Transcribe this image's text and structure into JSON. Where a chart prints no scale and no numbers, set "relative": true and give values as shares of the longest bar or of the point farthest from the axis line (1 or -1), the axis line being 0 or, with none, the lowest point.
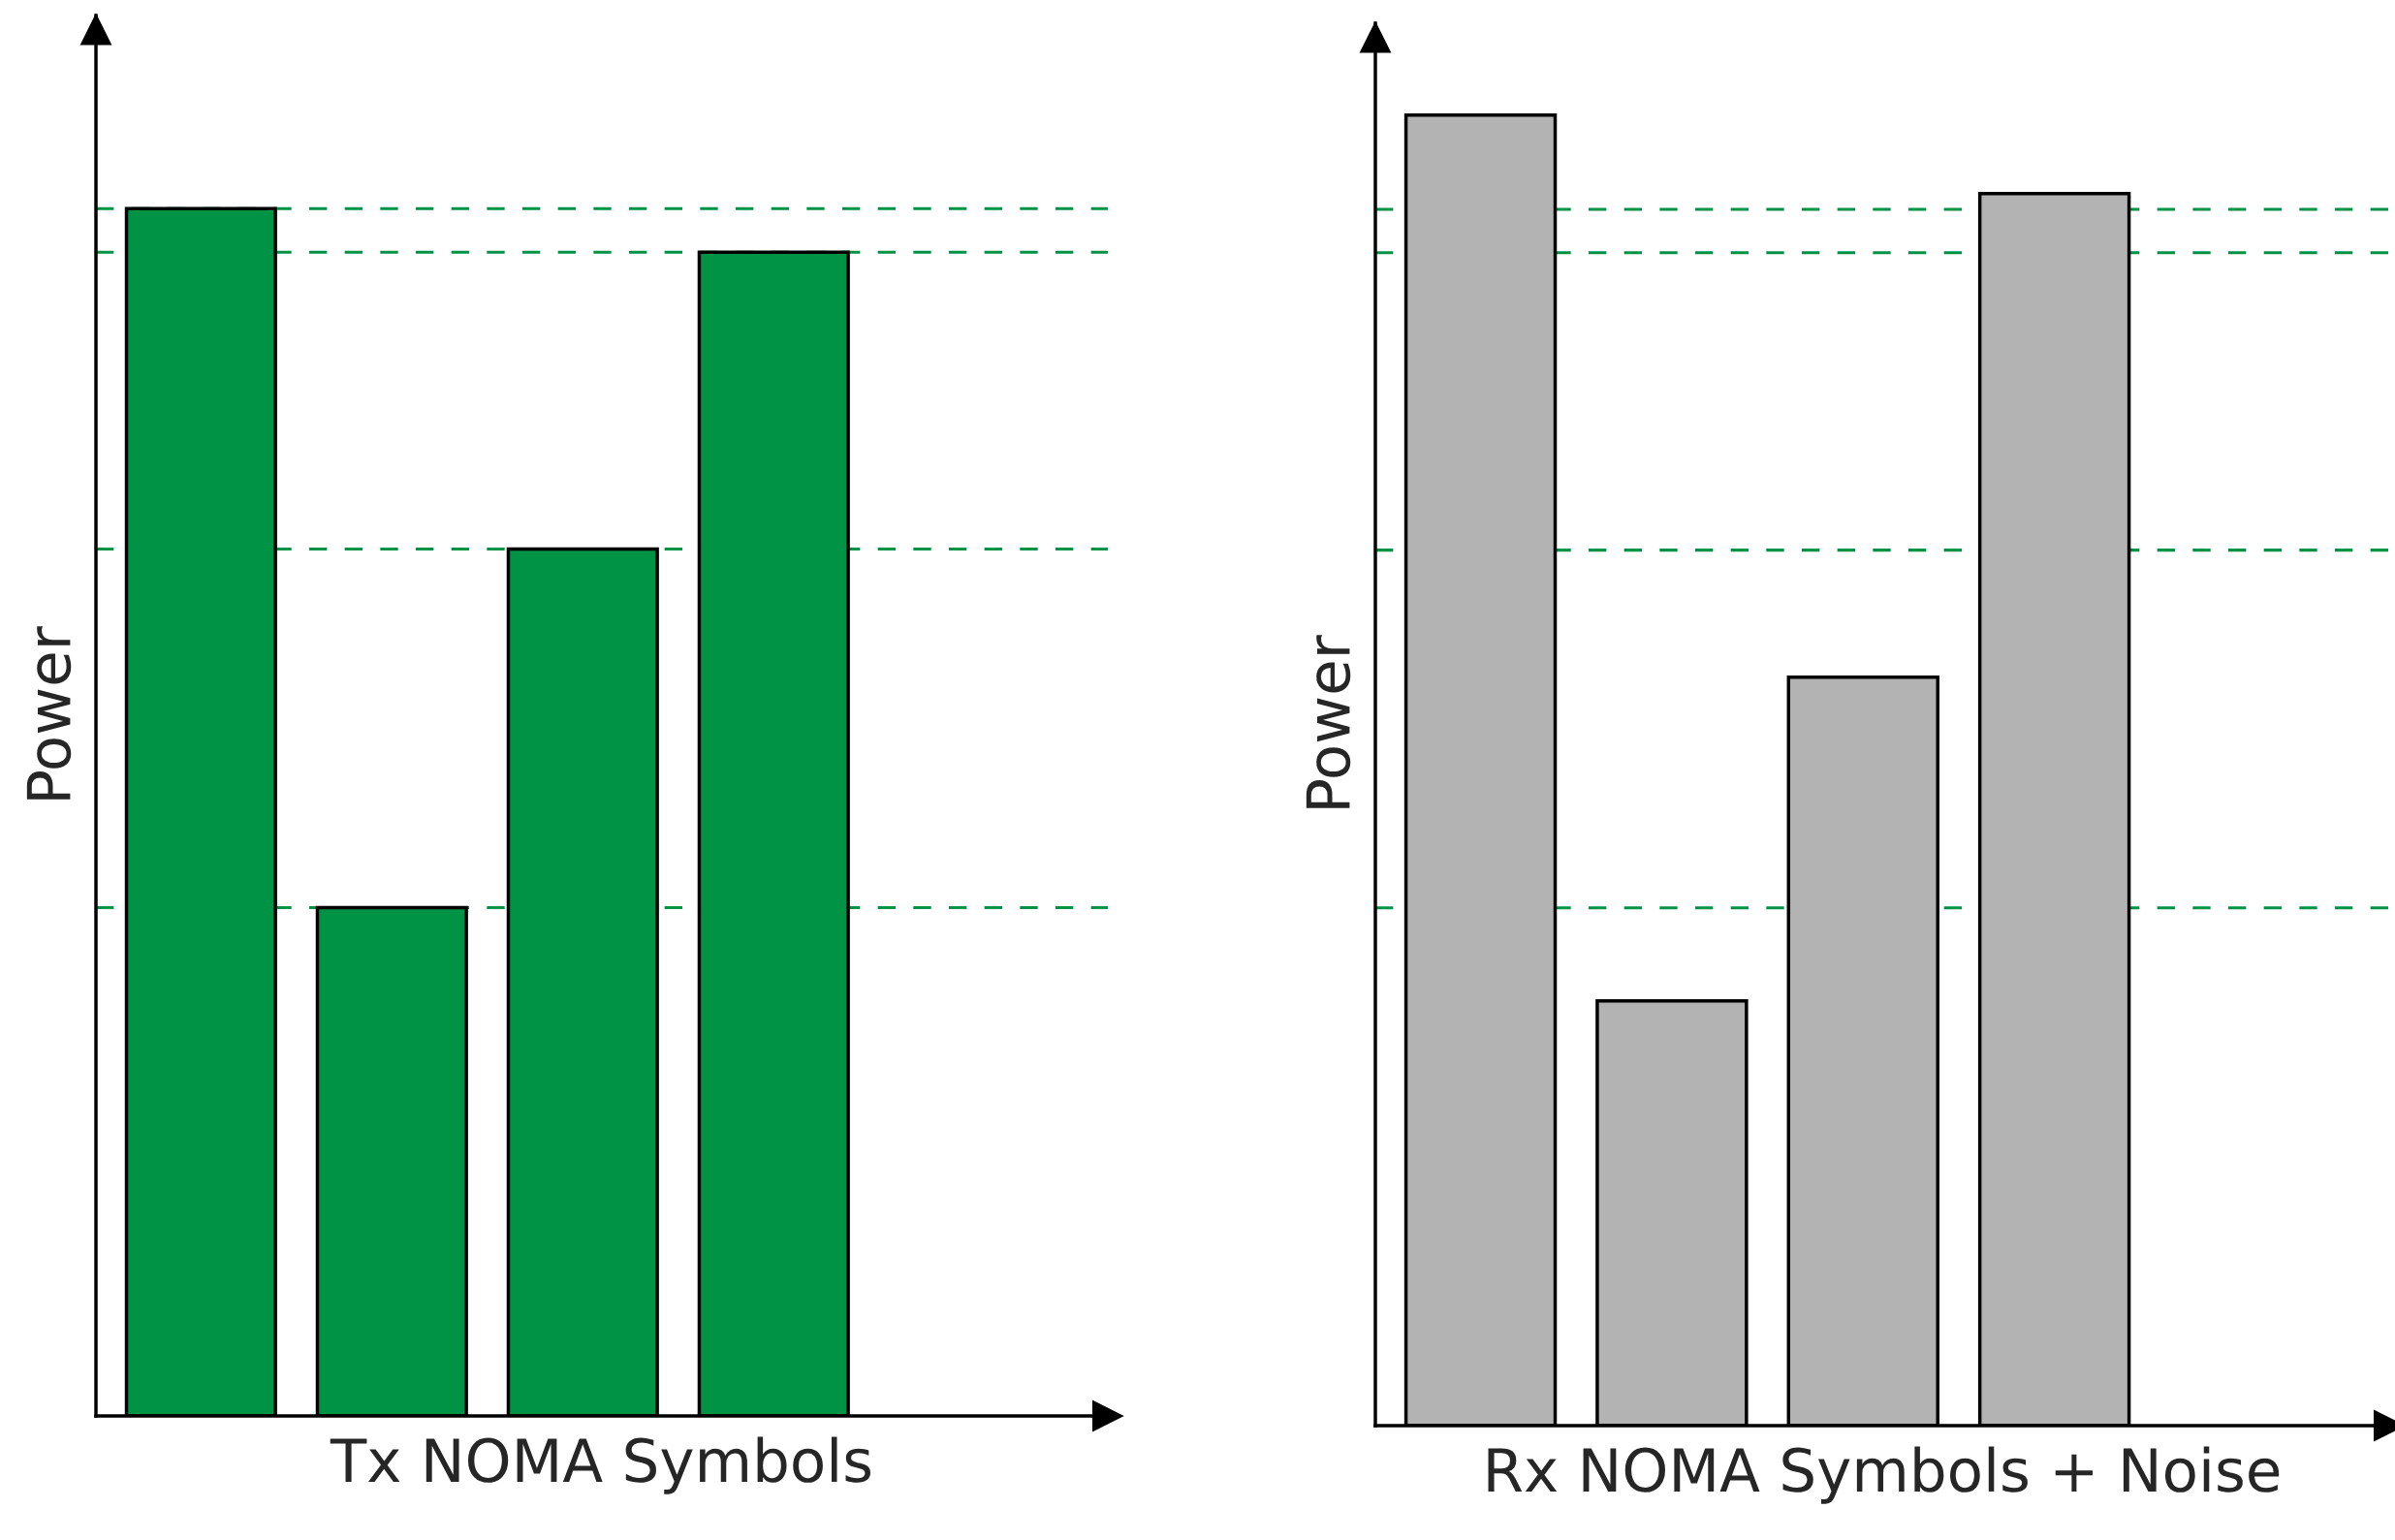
{
  "chart_data": [
    {
      "type": "bar",
      "relative": true,
      "xlabel": "Tx NOMA Symbols",
      "ylabel": "Power",
      "categories": [
        null,
        null,
        null,
        null
      ],
      "values": [
        1,
        0.421,
        0.718,
        0.964
      ],
      "color": "#009245",
      "ref_lines": [
        {
          "axis": "y",
          "value": 1,
          "color": "#009245",
          "line_style": "dashed"
        },
        {
          "axis": "y",
          "value": 0.964,
          "color": "#009245",
          "line_style": "dashed"
        },
        {
          "axis": "y",
          "value": 0.718,
          "color": "#009245",
          "line_style": "dashed"
        },
        {
          "axis": "y",
          "value": 0.421,
          "color": "#009245",
          "line_style": "dashed"
        }
      ]
    },
    {
      "type": "bar",
      "relative": true,
      "xlabel": "Rx NOMA Symbols + Noise",
      "ylabel": "Power",
      "categories": [
        null,
        null,
        null,
        null
      ],
      "values": [
        1,
        0.324,
        0.571,
        0.94
      ],
      "color": "#b3b3b3",
      "ref_lines": [
        {
          "axis": "y",
          "value": 0.928,
          "color": "#009245",
          "line_style": "dashed"
        },
        {
          "axis": "y",
          "value": 0.895,
          "color": "#009245",
          "line_style": "dashed"
        },
        {
          "axis": "y",
          "value": 0.668,
          "color": "#009245",
          "line_style": "dashed"
        },
        {
          "axis": "y",
          "value": 0.395,
          "color": "#009245",
          "line_style": "dashed"
        }
      ]
    }
  ]
}
